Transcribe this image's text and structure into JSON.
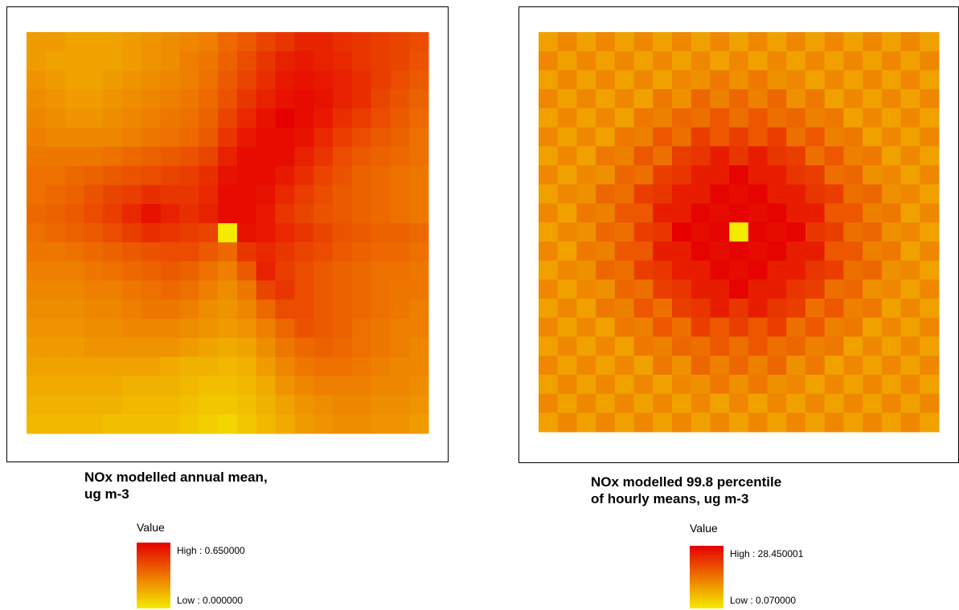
{
  "chart_data": [
    {
      "type": "heatmap",
      "title": [
        "NOx modelled annual mean,",
        "ug m-3"
      ],
      "legend": {
        "title": "Value",
        "high": {
          "value": 0.65,
          "label": "High : 0.650000"
        },
        "low": {
          "value": 0.0,
          "label": "Low : 0.000000"
        }
      },
      "colors": [
        "#f5eb00",
        "#e60000"
      ],
      "matrix": [
        [
          0.22,
          0.22,
          0.2,
          0.2,
          0.2,
          0.22,
          0.24,
          0.26,
          0.28,
          0.3,
          0.36,
          0.4,
          0.46,
          0.5,
          0.55,
          0.55,
          0.52,
          0.5,
          0.48,
          0.46,
          0.44
        ],
        [
          0.22,
          0.2,
          0.2,
          0.2,
          0.2,
          0.22,
          0.24,
          0.26,
          0.3,
          0.32,
          0.38,
          0.44,
          0.5,
          0.56,
          0.58,
          0.56,
          0.54,
          0.5,
          0.48,
          0.46,
          0.42
        ],
        [
          0.24,
          0.22,
          0.2,
          0.2,
          0.22,
          0.24,
          0.26,
          0.28,
          0.3,
          0.34,
          0.4,
          0.46,
          0.52,
          0.58,
          0.6,
          0.58,
          0.56,
          0.52,
          0.48,
          0.44,
          0.4
        ],
        [
          0.26,
          0.24,
          0.22,
          0.22,
          0.24,
          0.26,
          0.28,
          0.3,
          0.32,
          0.36,
          0.42,
          0.5,
          0.56,
          0.6,
          0.62,
          0.6,
          0.56,
          0.52,
          0.46,
          0.42,
          0.38
        ],
        [
          0.28,
          0.26,
          0.24,
          0.24,
          0.26,
          0.28,
          0.3,
          0.32,
          0.34,
          0.38,
          0.46,
          0.54,
          0.6,
          0.65,
          0.62,
          0.58,
          0.52,
          0.48,
          0.44,
          0.4,
          0.36
        ],
        [
          0.3,
          0.28,
          0.28,
          0.28,
          0.28,
          0.3,
          0.32,
          0.34,
          0.36,
          0.4,
          0.5,
          0.58,
          0.62,
          0.62,
          0.6,
          0.54,
          0.48,
          0.44,
          0.4,
          0.38,
          0.34
        ],
        [
          0.32,
          0.32,
          0.32,
          0.32,
          0.34,
          0.36,
          0.38,
          0.4,
          0.42,
          0.46,
          0.56,
          0.62,
          0.62,
          0.62,
          0.56,
          0.5,
          0.44,
          0.4,
          0.38,
          0.36,
          0.34
        ],
        [
          0.34,
          0.34,
          0.36,
          0.38,
          0.4,
          0.42,
          0.44,
          0.46,
          0.48,
          0.52,
          0.6,
          0.62,
          0.62,
          0.58,
          0.52,
          0.46,
          0.42,
          0.38,
          0.36,
          0.34,
          0.32
        ],
        [
          0.34,
          0.36,
          0.38,
          0.42,
          0.46,
          0.48,
          0.52,
          0.5,
          0.5,
          0.54,
          0.62,
          0.62,
          0.6,
          0.54,
          0.48,
          0.44,
          0.4,
          0.38,
          0.36,
          0.34,
          0.32
        ],
        [
          0.36,
          0.38,
          0.4,
          0.44,
          0.48,
          0.54,
          0.6,
          0.56,
          0.52,
          0.56,
          0.62,
          0.62,
          0.58,
          0.5,
          0.46,
          0.42,
          0.4,
          0.38,
          0.36,
          0.34,
          0.32
        ],
        [
          0.34,
          0.36,
          0.38,
          0.4,
          0.44,
          0.48,
          0.52,
          0.5,
          0.48,
          0.46,
          0.0,
          0.6,
          0.58,
          0.54,
          0.5,
          0.46,
          0.42,
          0.4,
          0.38,
          0.38,
          0.36
        ],
        [
          0.32,
          0.32,
          0.34,
          0.36,
          0.38,
          0.4,
          0.42,
          0.44,
          0.44,
          0.4,
          0.36,
          0.5,
          0.54,
          0.5,
          0.46,
          0.44,
          0.4,
          0.38,
          0.36,
          0.36,
          0.34
        ],
        [
          0.3,
          0.3,
          0.3,
          0.32,
          0.34,
          0.36,
          0.38,
          0.4,
          0.38,
          0.34,
          0.3,
          0.4,
          0.56,
          0.48,
          0.44,
          0.4,
          0.38,
          0.36,
          0.34,
          0.34,
          0.32
        ],
        [
          0.28,
          0.28,
          0.28,
          0.3,
          0.3,
          0.32,
          0.34,
          0.36,
          0.34,
          0.3,
          0.26,
          0.32,
          0.46,
          0.5,
          0.44,
          0.4,
          0.38,
          0.36,
          0.34,
          0.32,
          0.32
        ],
        [
          0.26,
          0.26,
          0.26,
          0.28,
          0.28,
          0.3,
          0.32,
          0.32,
          0.3,
          0.26,
          0.24,
          0.28,
          0.36,
          0.44,
          0.44,
          0.4,
          0.38,
          0.36,
          0.34,
          0.32,
          0.3
        ],
        [
          0.24,
          0.24,
          0.24,
          0.26,
          0.26,
          0.28,
          0.28,
          0.28,
          0.26,
          0.24,
          0.22,
          0.24,
          0.3,
          0.36,
          0.42,
          0.4,
          0.38,
          0.34,
          0.32,
          0.3,
          0.3
        ],
        [
          0.22,
          0.22,
          0.22,
          0.24,
          0.24,
          0.24,
          0.24,
          0.24,
          0.22,
          0.2,
          0.18,
          0.2,
          0.26,
          0.32,
          0.36,
          0.38,
          0.36,
          0.34,
          0.32,
          0.3,
          0.28
        ],
        [
          0.2,
          0.2,
          0.2,
          0.2,
          0.2,
          0.2,
          0.2,
          0.18,
          0.16,
          0.16,
          0.14,
          0.16,
          0.22,
          0.28,
          0.32,
          0.34,
          0.34,
          0.32,
          0.3,
          0.28,
          0.28
        ],
        [
          0.18,
          0.18,
          0.18,
          0.18,
          0.18,
          0.16,
          0.16,
          0.16,
          0.14,
          0.12,
          0.12,
          0.14,
          0.18,
          0.24,
          0.28,
          0.3,
          0.3,
          0.3,
          0.28,
          0.28,
          0.26
        ],
        [
          0.16,
          0.16,
          0.16,
          0.16,
          0.16,
          0.14,
          0.14,
          0.14,
          0.12,
          0.1,
          0.1,
          0.12,
          0.16,
          0.2,
          0.24,
          0.26,
          0.28,
          0.28,
          0.26,
          0.26,
          0.24
        ],
        [
          0.14,
          0.14,
          0.14,
          0.14,
          0.12,
          0.12,
          0.12,
          0.12,
          0.1,
          0.08,
          0.06,
          0.1,
          0.14,
          0.18,
          0.22,
          0.24,
          0.26,
          0.26,
          0.24,
          0.24,
          0.22
        ]
      ]
    },
    {
      "type": "heatmap",
      "title": [
        "NOx modelled 99.8 percentile",
        "of hourly means, ug m-3"
      ],
      "legend": {
        "title": "Value",
        "high": {
          "value": 28.450001,
          "label": "High : 28.450001"
        },
        "low": {
          "value": 0.07,
          "label": "Low : 0.070000"
        }
      },
      "colors": [
        "#f5eb00",
        "#e60000"
      ],
      "matrix": [
        [
          9,
          12,
          9,
          12,
          9,
          12,
          9,
          12,
          9,
          12,
          9,
          12,
          9,
          12,
          9,
          12,
          9,
          12,
          9,
          12,
          9
        ],
        [
          12,
          9,
          12,
          9,
          12,
          9,
          12,
          9,
          12,
          9,
          12,
          9,
          12,
          9,
          12,
          9,
          12,
          9,
          12,
          9,
          12
        ],
        [
          9,
          12,
          9,
          12,
          9,
          12,
          9,
          12,
          11,
          14,
          11,
          14,
          11,
          12,
          9,
          12,
          9,
          12,
          9,
          12,
          9
        ],
        [
          12,
          9,
          12,
          9,
          12,
          9,
          14,
          11,
          16,
          13,
          16,
          13,
          16,
          11,
          14,
          9,
          12,
          9,
          12,
          9,
          12
        ],
        [
          9,
          12,
          9,
          12,
          9,
          14,
          13,
          16,
          15,
          18,
          15,
          18,
          15,
          16,
          13,
          14,
          9,
          12,
          9,
          12,
          9
        ],
        [
          12,
          9,
          12,
          9,
          14,
          13,
          18,
          15,
          21,
          18,
          21,
          18,
          21,
          15,
          18,
          13,
          14,
          9,
          12,
          9,
          12
        ],
        [
          9,
          12,
          9,
          14,
          13,
          18,
          15,
          21,
          22,
          25,
          22,
          25,
          22,
          21,
          15,
          18,
          13,
          14,
          9,
          12,
          9
        ],
        [
          12,
          9,
          12,
          11,
          16,
          15,
          21,
          22,
          25,
          25,
          28,
          25,
          25,
          22,
          21,
          15,
          16,
          11,
          12,
          9,
          12
        ],
        [
          9,
          12,
          11,
          16,
          15,
          21,
          22,
          25,
          25,
          28,
          27,
          28,
          25,
          25,
          22,
          21,
          15,
          16,
          11,
          12,
          9
        ],
        [
          12,
          9,
          14,
          13,
          18,
          18,
          25,
          25,
          28,
          27,
          28,
          27,
          28,
          25,
          25,
          18,
          18,
          13,
          14,
          9,
          12
        ],
        [
          9,
          12,
          11,
          16,
          15,
          21,
          22,
          28.45,
          27,
          28,
          0.07,
          28,
          27,
          28,
          22,
          21,
          15,
          16,
          11,
          12,
          9
        ],
        [
          12,
          9,
          14,
          13,
          18,
          18,
          25,
          25,
          28,
          27,
          28,
          27,
          28,
          25,
          25,
          18,
          18,
          13,
          14,
          9,
          12
        ],
        [
          9,
          12,
          11,
          16,
          15,
          21,
          22,
          25,
          25,
          28,
          27,
          28,
          25,
          25,
          22,
          21,
          15,
          16,
          11,
          12,
          9
        ],
        [
          12,
          9,
          12,
          11,
          16,
          15,
          21,
          22,
          25,
          25,
          28,
          25,
          25,
          22,
          21,
          15,
          16,
          11,
          12,
          9,
          12
        ],
        [
          9,
          12,
          9,
          14,
          13,
          18,
          15,
          21,
          22,
          25,
          22,
          25,
          22,
          21,
          15,
          18,
          13,
          14,
          9,
          12,
          9
        ],
        [
          12,
          9,
          12,
          9,
          14,
          13,
          18,
          15,
          21,
          18,
          21,
          18,
          21,
          15,
          18,
          13,
          14,
          9,
          12,
          9,
          12
        ],
        [
          9,
          12,
          9,
          12,
          9,
          14,
          13,
          16,
          15,
          18,
          15,
          18,
          15,
          16,
          13,
          14,
          9,
          12,
          9,
          12,
          9
        ],
        [
          12,
          9,
          12,
          9,
          12,
          9,
          14,
          11,
          16,
          13,
          16,
          13,
          16,
          11,
          14,
          9,
          12,
          9,
          12,
          9,
          12
        ],
        [
          9,
          12,
          9,
          12,
          9,
          12,
          9,
          12,
          11,
          14,
          11,
          14,
          11,
          12,
          9,
          12,
          9,
          12,
          9,
          12,
          9
        ],
        [
          12,
          9,
          12,
          9,
          12,
          9,
          12,
          9,
          12,
          9,
          12,
          9,
          12,
          9,
          12,
          9,
          12,
          9,
          12,
          9,
          12
        ],
        [
          9,
          12,
          9,
          12,
          9,
          12,
          9,
          12,
          9,
          12,
          9,
          12,
          9,
          12,
          9,
          12,
          9,
          12,
          9,
          12,
          9
        ]
      ]
    }
  ]
}
